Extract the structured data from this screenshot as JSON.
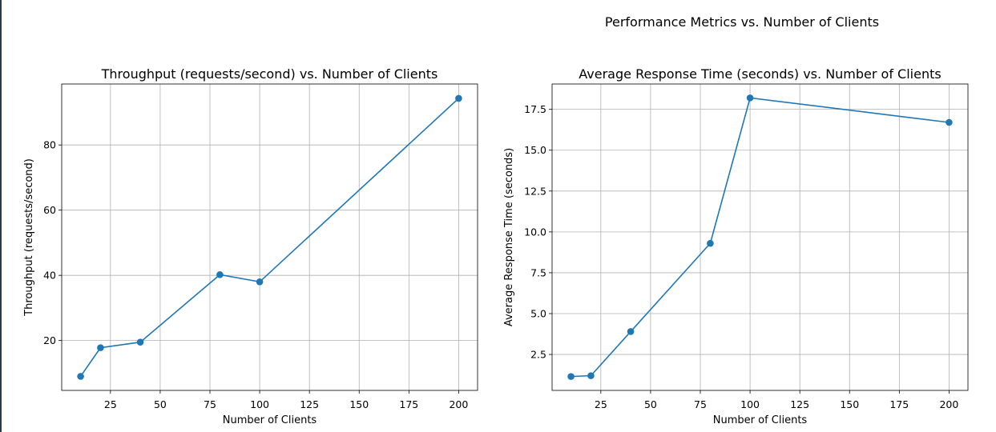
{
  "figure": {
    "suptitle": "Performance Metrics vs. Number of Clients"
  },
  "chart_data": [
    {
      "type": "line",
      "title": "Throughput (requests/second) vs. Number of Clients",
      "xlabel": "Number of Clients",
      "ylabel": "Throughput (requests/second)",
      "x": [
        10,
        20,
        40,
        80,
        100,
        200
      ],
      "series": [
        {
          "values": [
            9.0,
            17.8,
            19.5,
            40.2,
            38.0,
            94.3
          ],
          "color": "#1f77b4",
          "marker": "circle"
        }
      ],
      "xlim": [
        0.5,
        209.5
      ],
      "ylim": [
        4.7,
        98.7
      ],
      "xticks": [
        25,
        50,
        75,
        100,
        125,
        150,
        175,
        200
      ],
      "yticks": [
        20,
        40,
        60,
        80
      ],
      "grid": true
    },
    {
      "type": "line",
      "title": "Average Response Time (seconds) vs. Number of Clients",
      "xlabel": "Number of Clients",
      "ylabel": "Average Response Time (seconds)",
      "x": [
        10,
        20,
        40,
        80,
        100,
        200
      ],
      "series": [
        {
          "values": [
            1.15,
            1.2,
            3.9,
            9.3,
            18.2,
            16.7
          ],
          "color": "#1f77b4",
          "marker": "circle"
        }
      ],
      "xlim": [
        0.5,
        209.5
      ],
      "ylim": [
        0.3,
        19.05
      ],
      "xticks": [
        25,
        50,
        75,
        100,
        125,
        150,
        175,
        200
      ],
      "yticks": [
        2.5,
        5.0,
        7.5,
        10.0,
        12.5,
        15.0,
        17.5
      ],
      "grid": true
    }
  ]
}
